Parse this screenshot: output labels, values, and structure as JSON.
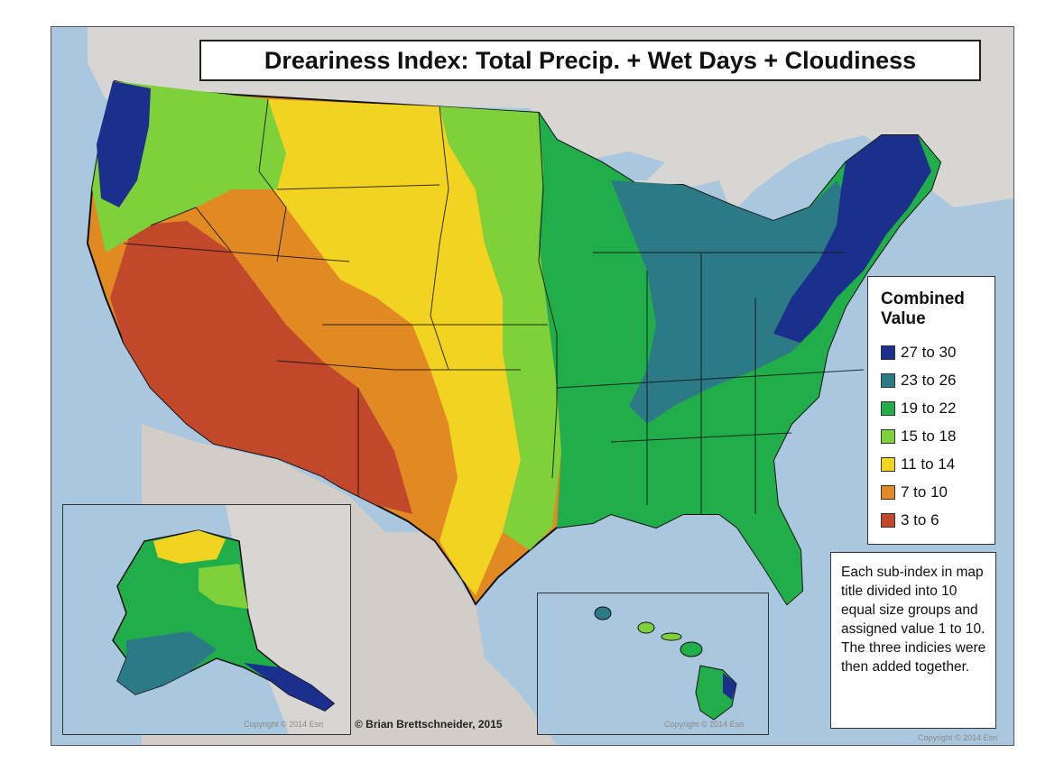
{
  "title": "Dreariness Index: Total Precip. + Wet Days + Cloudiness",
  "legend": {
    "title": "Combined Value",
    "items": [
      {
        "label": "27 to 30",
        "color": "#1b2f8c"
      },
      {
        "label": "23 to 26",
        "color": "#2b7a86"
      },
      {
        "label": "19 to 22",
        "color": "#22ad4b"
      },
      {
        "label": "15 to 18",
        "color": "#7ed13a"
      },
      {
        "label": "11 to 14",
        "color": "#f3d321"
      },
      {
        "label": "7 to 10",
        "color": "#e18a23"
      },
      {
        "label": "3 to 6",
        "color": "#c2482c"
      }
    ]
  },
  "note": "Each sub-index in map title divided into 10 equal size groups and assigned value 1 to 10. The three indicies were then added together.",
  "credit": "© Brian Brettschneider, 2015",
  "copyright_alaska": "Copyright © 2014 Esri",
  "copyright_hawaii": "Copyright © 2014 Esri",
  "copyright_main": "Copyright © 2014 Esri",
  "colors": {
    "water": "#a9c7de",
    "land_foreign": "#d8d6d2",
    "land_mexico": "#d3cdc7"
  }
}
